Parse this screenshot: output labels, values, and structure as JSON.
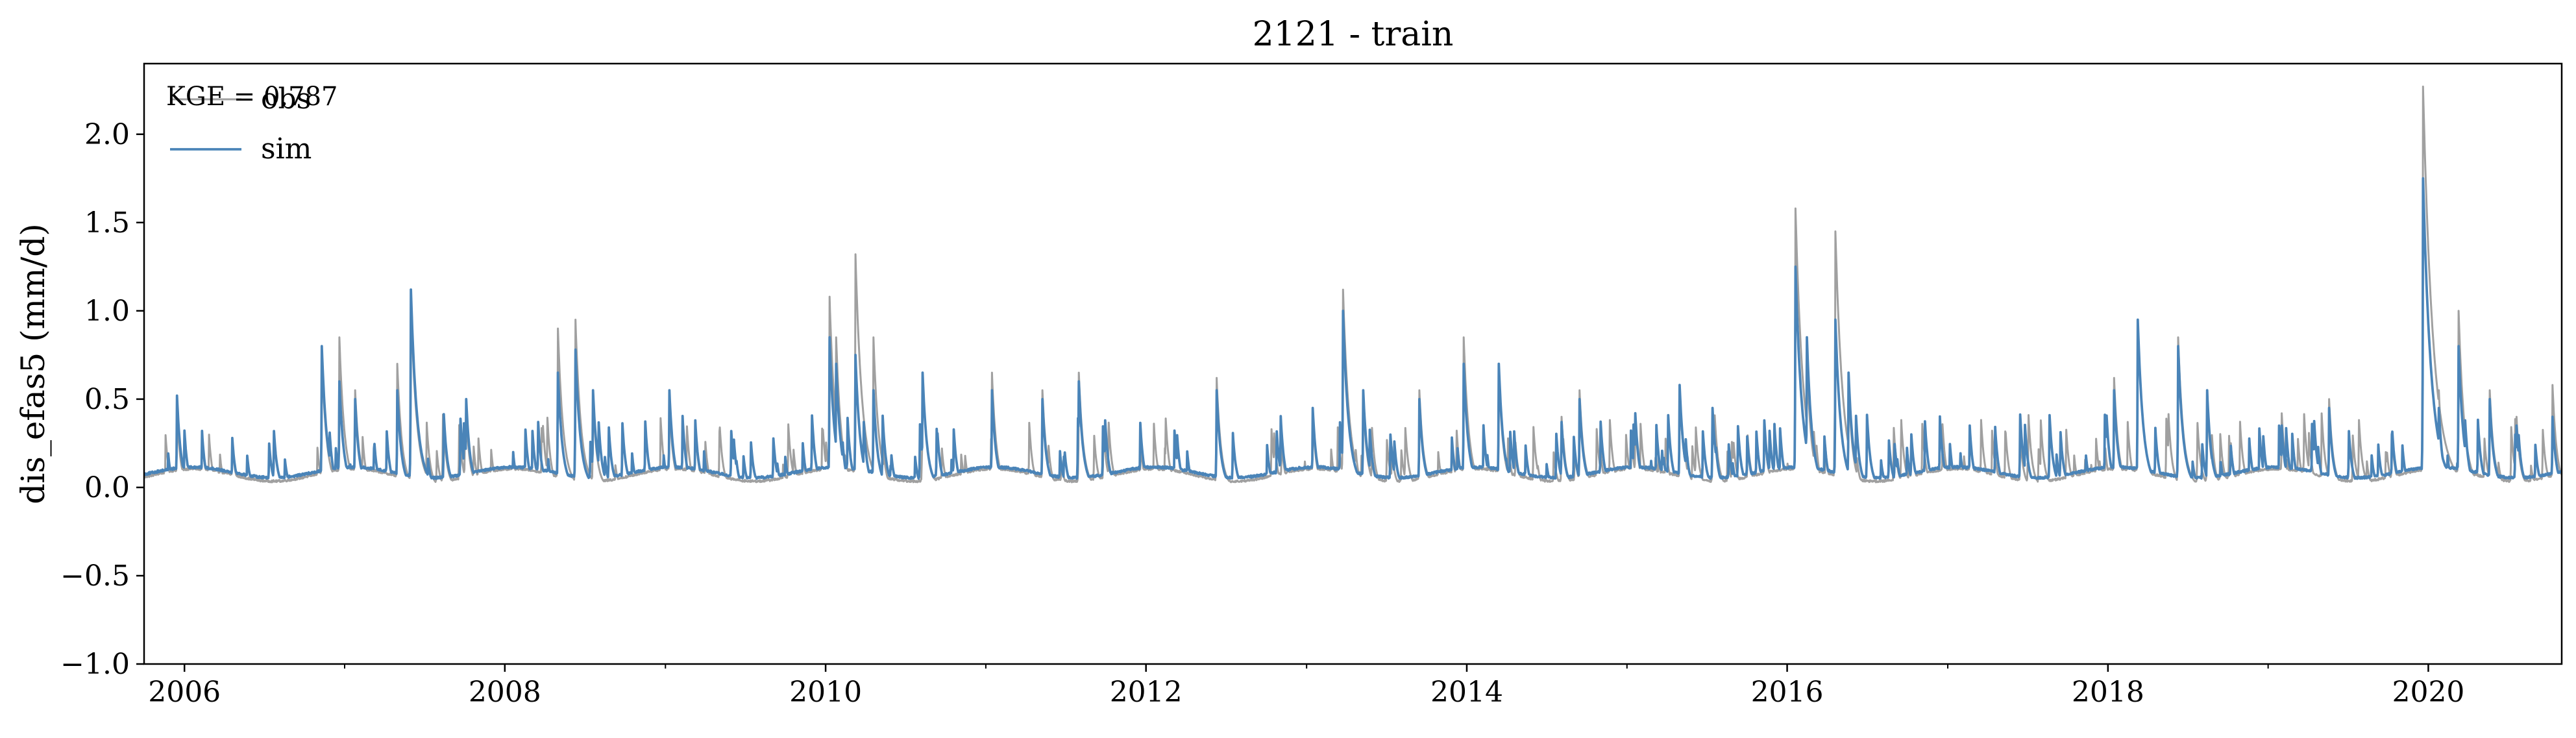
{
  "chart_data": {
    "type": "line",
    "title": "2121 - train",
    "xlabel": "",
    "ylabel": "dis_efas5 (mm/d)",
    "xlim": [
      "2005-10-01",
      "2020-10-31"
    ],
    "ylim": [
      -1.0,
      2.4
    ],
    "y_ticks": [
      -1.0,
      -0.5,
      0.0,
      0.5,
      1.0,
      1.5,
      2.0
    ],
    "y_tick_labels": [
      "−1.0",
      "−0.5",
      "0.0",
      "0.5",
      "1.0",
      "1.5",
      "2.0"
    ],
    "x_ticks": [
      "2006-01-01",
      "2008-01-01",
      "2010-01-01",
      "2012-01-01",
      "2014-01-01",
      "2016-01-01",
      "2018-01-01",
      "2020-01-01"
    ],
    "x_tick_labels": [
      "2006",
      "2008",
      "2010",
      "2012",
      "2014",
      "2016",
      "2018",
      "2020"
    ],
    "grid": false,
    "legend_position": "top-left",
    "annotation": "KGE = 0.787",
    "series": [
      {
        "name": "obs",
        "color": "#a0a0a0",
        "peaks": [
          [
            "2005-12-15",
            0.42
          ],
          [
            "2006-02-10",
            0.3
          ],
          [
            "2006-04-20",
            0.25
          ],
          [
            "2006-11-10",
            0.75
          ],
          [
            "2006-12-20",
            0.85
          ],
          [
            "2007-01-25",
            0.55
          ],
          [
            "2007-05-01",
            0.7
          ],
          [
            "2007-06-01",
            1.05
          ],
          [
            "2007-10-05",
            0.42
          ],
          [
            "2008-01-20",
            0.15
          ],
          [
            "2008-05-01",
            0.9
          ],
          [
            "2008-06-10",
            0.95
          ],
          [
            "2008-07-20",
            0.5
          ],
          [
            "2009-01-10",
            0.48
          ],
          [
            "2009-03-10",
            0.35
          ],
          [
            "2009-11-10",
            0.2
          ],
          [
            "2010-01-10",
            1.08
          ],
          [
            "2010-01-25",
            0.85
          ],
          [
            "2010-03-10",
            1.32
          ],
          [
            "2010-04-20",
            0.85
          ],
          [
            "2010-08-10",
            0.65
          ],
          [
            "2011-01-15",
            0.65
          ],
          [
            "2011-05-10",
            0.55
          ],
          [
            "2011-08-01",
            0.65
          ],
          [
            "2011-12-20",
            0.25
          ],
          [
            "2012-06-10",
            0.62
          ],
          [
            "2013-01-15",
            0.4
          ],
          [
            "2013-03-25",
            1.12
          ],
          [
            "2013-05-10",
            0.5
          ],
          [
            "2013-09-15",
            0.55
          ],
          [
            "2013-12-25",
            0.85
          ],
          [
            "2014-03-15",
            0.65
          ],
          [
            "2014-09-15",
            0.55
          ],
          [
            "2015-01-20",
            0.38
          ],
          [
            "2015-05-01",
            0.55
          ],
          [
            "2015-07-15",
            0.4
          ],
          [
            "2015-11-10",
            0.35
          ],
          [
            "2016-01-20",
            1.58
          ],
          [
            "2016-02-15",
            0.72
          ],
          [
            "2016-04-20",
            1.45
          ],
          [
            "2016-05-20",
            0.58
          ],
          [
            "2016-10-10",
            0.3
          ],
          [
            "2017-02-20",
            0.35
          ],
          [
            "2017-06-15",
            0.3
          ],
          [
            "2018-01-15",
            0.62
          ],
          [
            "2018-03-10",
            0.95
          ],
          [
            "2018-06-10",
            0.85
          ],
          [
            "2018-08-15",
            0.5
          ],
          [
            "2019-02-01",
            0.42
          ],
          [
            "2019-05-20",
            0.5
          ],
          [
            "2019-10-10",
            0.3
          ],
          [
            "2019-12-20",
            2.27
          ],
          [
            "2020-01-25",
            0.55
          ],
          [
            "2020-03-10",
            1.0
          ],
          [
            "2020-05-20",
            0.55
          ],
          [
            "2020-07-20",
            0.4
          ],
          [
            "2020-10-10",
            0.58
          ]
        ]
      },
      {
        "name": "sim",
        "color": "#4a84b8",
        "peaks": [
          [
            "2005-12-15",
            0.52
          ],
          [
            "2006-02-10",
            0.32
          ],
          [
            "2006-04-20",
            0.28
          ],
          [
            "2006-11-10",
            0.8
          ],
          [
            "2006-12-20",
            0.6
          ],
          [
            "2007-01-25",
            0.5
          ],
          [
            "2007-05-01",
            0.55
          ],
          [
            "2007-06-01",
            1.12
          ],
          [
            "2007-10-05",
            0.5
          ],
          [
            "2008-01-20",
            0.2
          ],
          [
            "2008-05-01",
            0.65
          ],
          [
            "2008-06-10",
            0.78
          ],
          [
            "2008-07-20",
            0.55
          ],
          [
            "2009-01-10",
            0.55
          ],
          [
            "2009-03-10",
            0.38
          ],
          [
            "2009-11-10",
            0.25
          ],
          [
            "2010-01-10",
            0.85
          ],
          [
            "2010-01-25",
            0.7
          ],
          [
            "2010-03-10",
            0.75
          ],
          [
            "2010-04-20",
            0.55
          ],
          [
            "2010-08-10",
            0.65
          ],
          [
            "2011-01-15",
            0.55
          ],
          [
            "2011-05-10",
            0.5
          ],
          [
            "2011-08-01",
            0.6
          ],
          [
            "2011-12-20",
            0.25
          ],
          [
            "2012-06-10",
            0.55
          ],
          [
            "2013-01-15",
            0.45
          ],
          [
            "2013-03-25",
            1.0
          ],
          [
            "2013-05-10",
            0.55
          ],
          [
            "2013-09-15",
            0.5
          ],
          [
            "2013-12-25",
            0.7
          ],
          [
            "2014-03-15",
            0.7
          ],
          [
            "2014-09-15",
            0.5
          ],
          [
            "2015-01-20",
            0.42
          ],
          [
            "2015-05-01",
            0.58
          ],
          [
            "2015-07-15",
            0.45
          ],
          [
            "2015-11-10",
            0.38
          ],
          [
            "2016-01-20",
            1.25
          ],
          [
            "2016-02-15",
            0.85
          ],
          [
            "2016-04-20",
            0.95
          ],
          [
            "2016-05-20",
            0.65
          ],
          [
            "2016-10-10",
            0.3
          ],
          [
            "2017-02-20",
            0.35
          ],
          [
            "2017-06-15",
            0.3
          ],
          [
            "2018-01-15",
            0.55
          ],
          [
            "2018-03-10",
            0.95
          ],
          [
            "2018-06-10",
            0.8
          ],
          [
            "2018-08-15",
            0.55
          ],
          [
            "2019-02-01",
            0.35
          ],
          [
            "2019-05-20",
            0.45
          ],
          [
            "2019-10-10",
            0.3
          ],
          [
            "2019-12-20",
            1.75
          ],
          [
            "2020-01-25",
            0.45
          ],
          [
            "2020-03-10",
            0.8
          ],
          [
            "2020-05-20",
            0.5
          ],
          [
            "2020-07-20",
            0.35
          ],
          [
            "2020-10-10",
            0.4
          ]
        ]
      }
    ]
  }
}
